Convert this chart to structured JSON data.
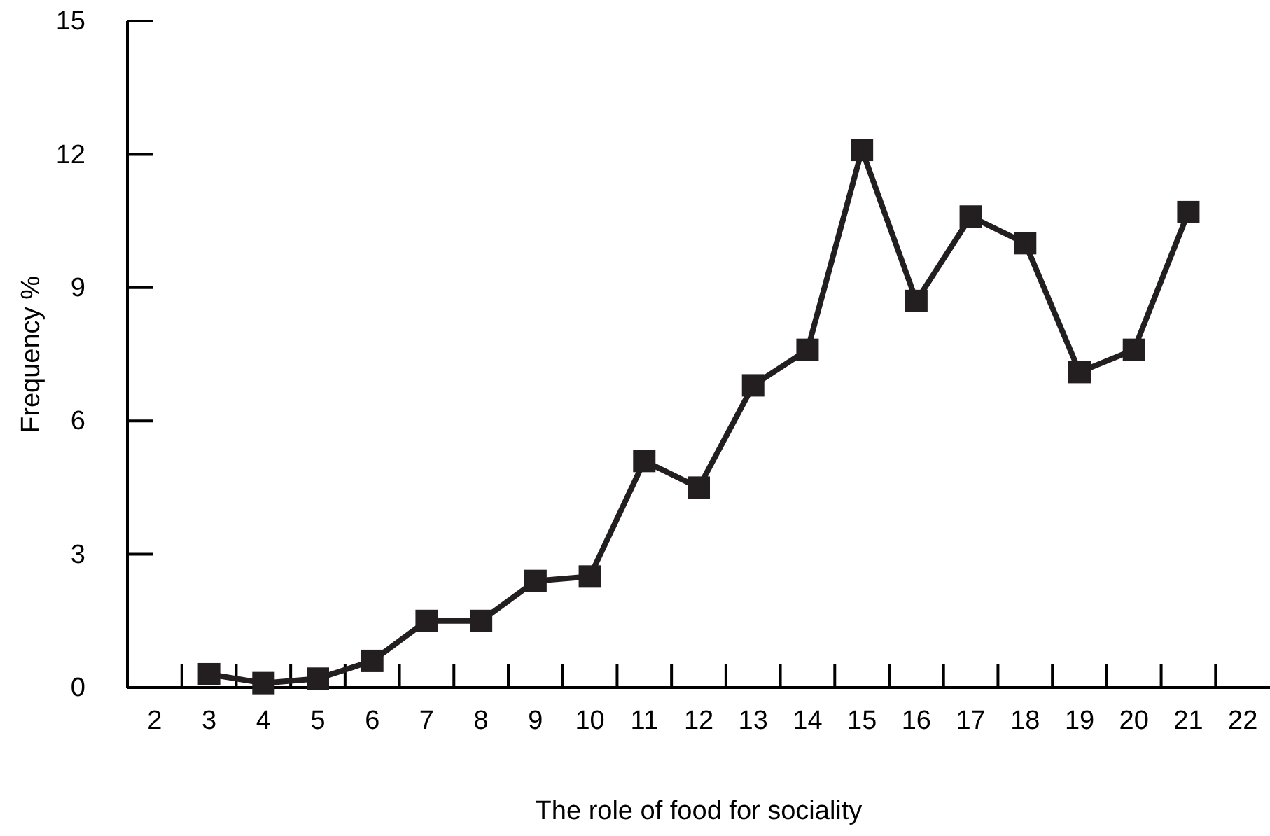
{
  "chart_data": {
    "type": "line",
    "xlabel": "The role of food for sociality",
    "ylabel": "Frequency %",
    "categories": [
      "2",
      "3",
      "4",
      "5",
      "6",
      "7",
      "8",
      "9",
      "10",
      "11",
      "12",
      "13",
      "14",
      "15",
      "16",
      "17",
      "18",
      "19",
      "20",
      "21",
      "22"
    ],
    "series": [
      {
        "color": "#231f20",
        "values": [
          null,
          0.3,
          0.1,
          0.2,
          0.6,
          1.5,
          1.5,
          2.4,
          2.5,
          5.1,
          4.5,
          6.8,
          7.6,
          12.1,
          8.7,
          10.6,
          10.0,
          7.1,
          7.6,
          10.7,
          null
        ]
      }
    ],
    "ylim": [
      0,
      15
    ],
    "yticks": [
      0,
      3,
      6,
      9,
      12,
      15
    ],
    "marker": "square",
    "line_style": "solid",
    "grid": false
  }
}
